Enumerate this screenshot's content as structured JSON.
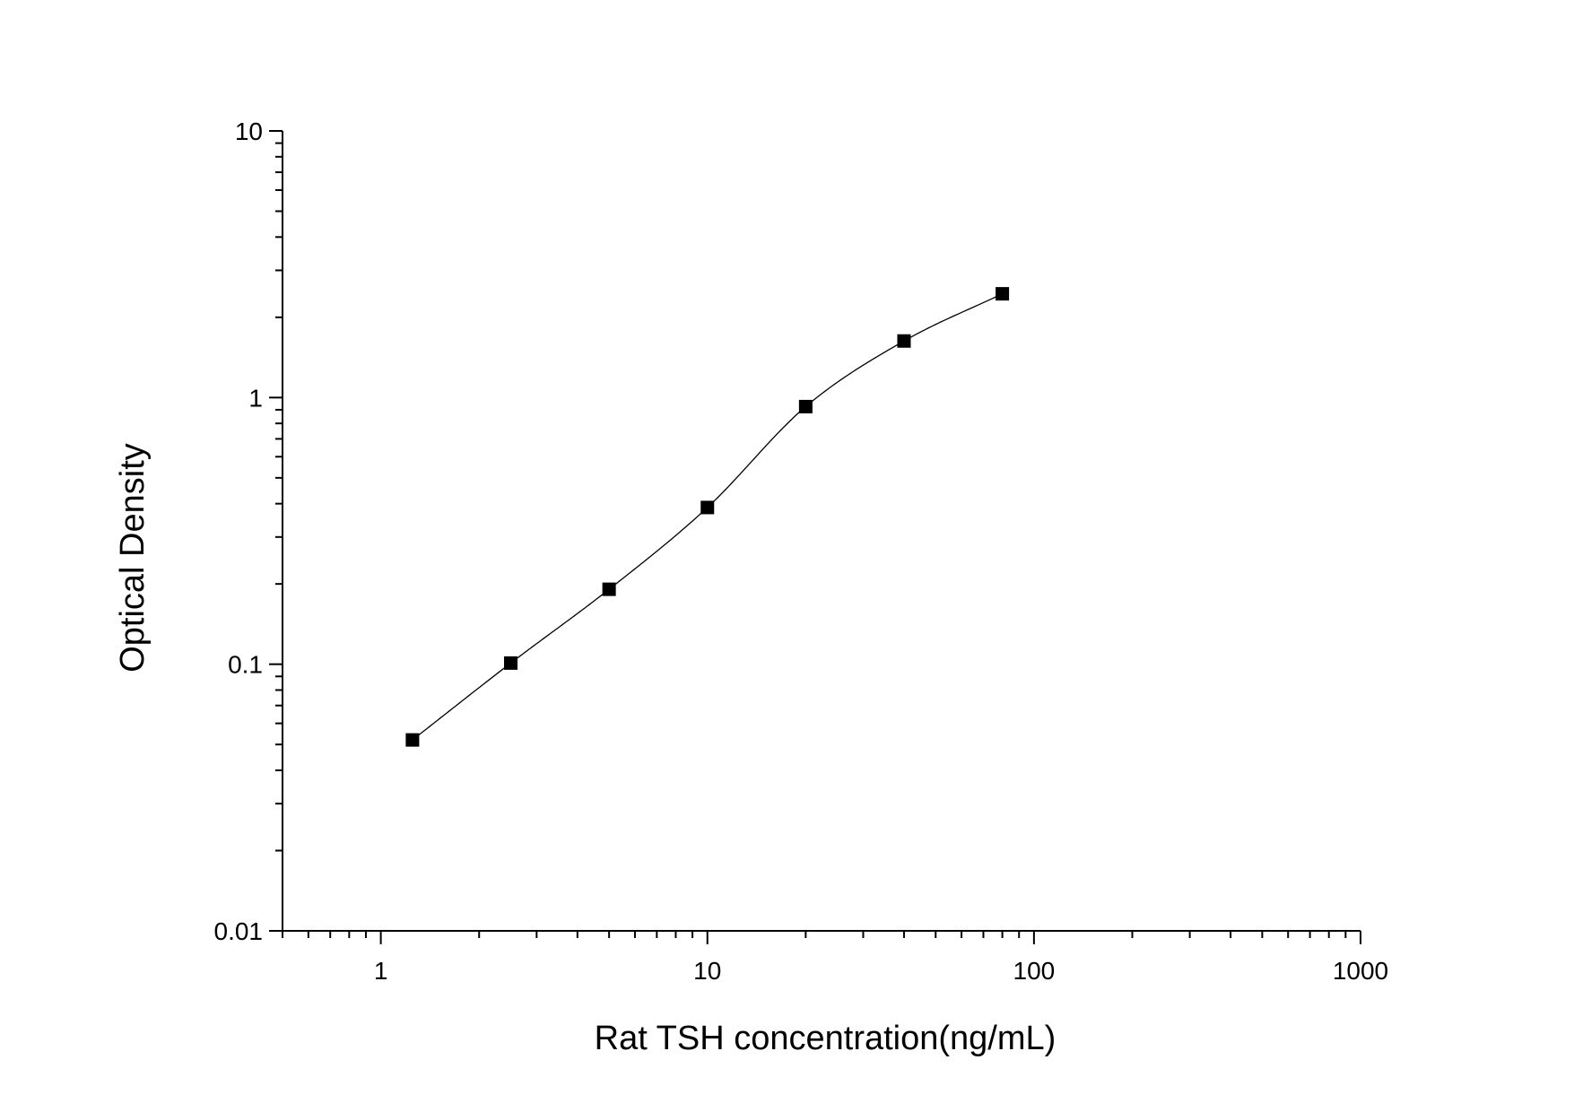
{
  "chart_data": {
    "type": "scatter",
    "title": "",
    "xlabel": "Rat TSH concentration(ng/mL)",
    "ylabel": "Optical Density",
    "xscale": "log",
    "yscale": "log",
    "xlim": [
      0.5,
      1000
    ],
    "ylim": [
      0.01,
      10
    ],
    "x_ticks": [
      {
        "value": 1,
        "label": "1"
      },
      {
        "value": 10,
        "label": "10"
      },
      {
        "value": 100,
        "label": "100"
      },
      {
        "value": 1000,
        "label": "1000"
      }
    ],
    "y_ticks": [
      {
        "value": 0.01,
        "label": "0.01"
      },
      {
        "value": 0.1,
        "label": "0.1"
      },
      {
        "value": 1,
        "label": "1"
      },
      {
        "value": 10,
        "label": "10"
      }
    ],
    "grid": false,
    "legend": "none",
    "marker": "square",
    "marker_color": "#000000",
    "fit_curve": "four-parameter logistic",
    "series": [
      {
        "x": [
          1.25,
          2.5,
          5,
          10,
          20,
          40,
          80
        ],
        "y": [
          0.052,
          0.101,
          0.191,
          0.387,
          0.925,
          1.63,
          2.45
        ]
      }
    ]
  }
}
